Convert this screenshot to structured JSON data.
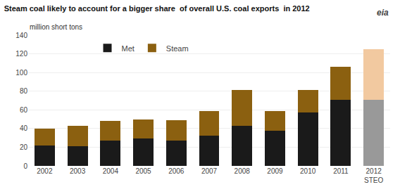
{
  "chart_data": {
    "type": "bar",
    "stacked": true,
    "title": "Steam coal likely to account for a bigger share  of overall U.S. coal exports  in 2012",
    "subtitle": "million short tons",
    "categories": [
      "2002",
      "2003",
      "2004",
      "2005",
      "2006",
      "2007",
      "2008",
      "2009",
      "2010",
      "2011",
      "2012\nSTEO"
    ],
    "series": [
      {
        "name": "Met",
        "color": "#1a1a1a",
        "colors": [
          "#1a1a1a",
          "#1a1a1a",
          "#1a1a1a",
          "#1a1a1a",
          "#1a1a1a",
          "#1a1a1a",
          "#1a1a1a",
          "#1a1a1a",
          "#1a1a1a",
          "#1a1a1a",
          "#999999"
        ],
        "values": [
          22,
          21,
          27,
          29,
          27,
          32,
          43,
          38,
          57,
          71,
          71
        ]
      },
      {
        "name": "Steam",
        "color": "#8B6010",
        "colors": [
          "#8B6010",
          "#8B6010",
          "#8B6010",
          "#8B6010",
          "#8B6010",
          "#8B6010",
          "#8B6010",
          "#8B6010",
          "#8B6010",
          "#8B6010",
          "#F2C9A0"
        ],
        "values": [
          18,
          22,
          21,
          21,
          22,
          27,
          38,
          21,
          24,
          35,
          54
        ]
      }
    ],
    "annotations": [
      "eia"
    ],
    "ylim": [
      0,
      140
    ],
    "yticks": [
      0,
      20,
      40,
      60,
      80,
      100,
      120,
      140
    ],
    "grid": true,
    "legend": "upper left"
  }
}
